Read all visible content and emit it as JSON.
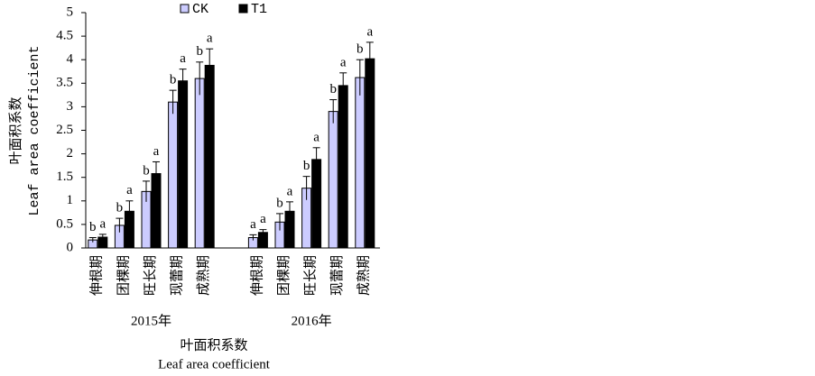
{
  "chart_data": {
    "type": "bar",
    "y_label": [
      "叶面积系数",
      "Leaf area coefficient"
    ],
    "x_label": [
      "叶面积系数",
      "Leaf area coefficient"
    ],
    "categories": [
      "伸根期",
      "团棵期",
      "旺长期",
      "现蕾期",
      "成熟期",
      null,
      "伸根期",
      "团棵期",
      "旺长期",
      "现蕾期",
      "成熟期"
    ],
    "groups": [
      "2015年",
      "2016年"
    ],
    "series": [
      {
        "name": "CK",
        "color": "#ccccff",
        "values": [
          0.17,
          0.48,
          1.2,
          3.1,
          3.6,
          null,
          0.22,
          0.55,
          1.27,
          2.9,
          3.62
        ],
        "errors": [
          0.05,
          0.15,
          0.22,
          0.25,
          0.35,
          null,
          0.06,
          0.18,
          0.25,
          0.25,
          0.38
        ],
        "letters": [
          "b",
          "b",
          "b",
          "b",
          "b",
          null,
          "a",
          "b",
          "b",
          "b",
          "b"
        ]
      },
      {
        "name": "T1",
        "color": "#000000",
        "values": [
          0.23,
          0.78,
          1.58,
          3.55,
          3.88,
          null,
          0.33,
          0.78,
          1.88,
          3.45,
          4.02
        ],
        "errors": [
          0.06,
          0.22,
          0.25,
          0.25,
          0.35,
          null,
          0.06,
          0.2,
          0.25,
          0.27,
          0.35
        ],
        "letters": [
          "a",
          "a",
          "a",
          "a",
          "a",
          null,
          "a",
          "a",
          "a",
          "a",
          "a"
        ]
      }
    ],
    "ylim": [
      0,
      5
    ],
    "yticks": [
      0,
      0.5,
      1,
      1.5,
      2,
      2.5,
      3,
      3.5,
      4,
      4.5,
      5
    ],
    "legend": "top"
  }
}
